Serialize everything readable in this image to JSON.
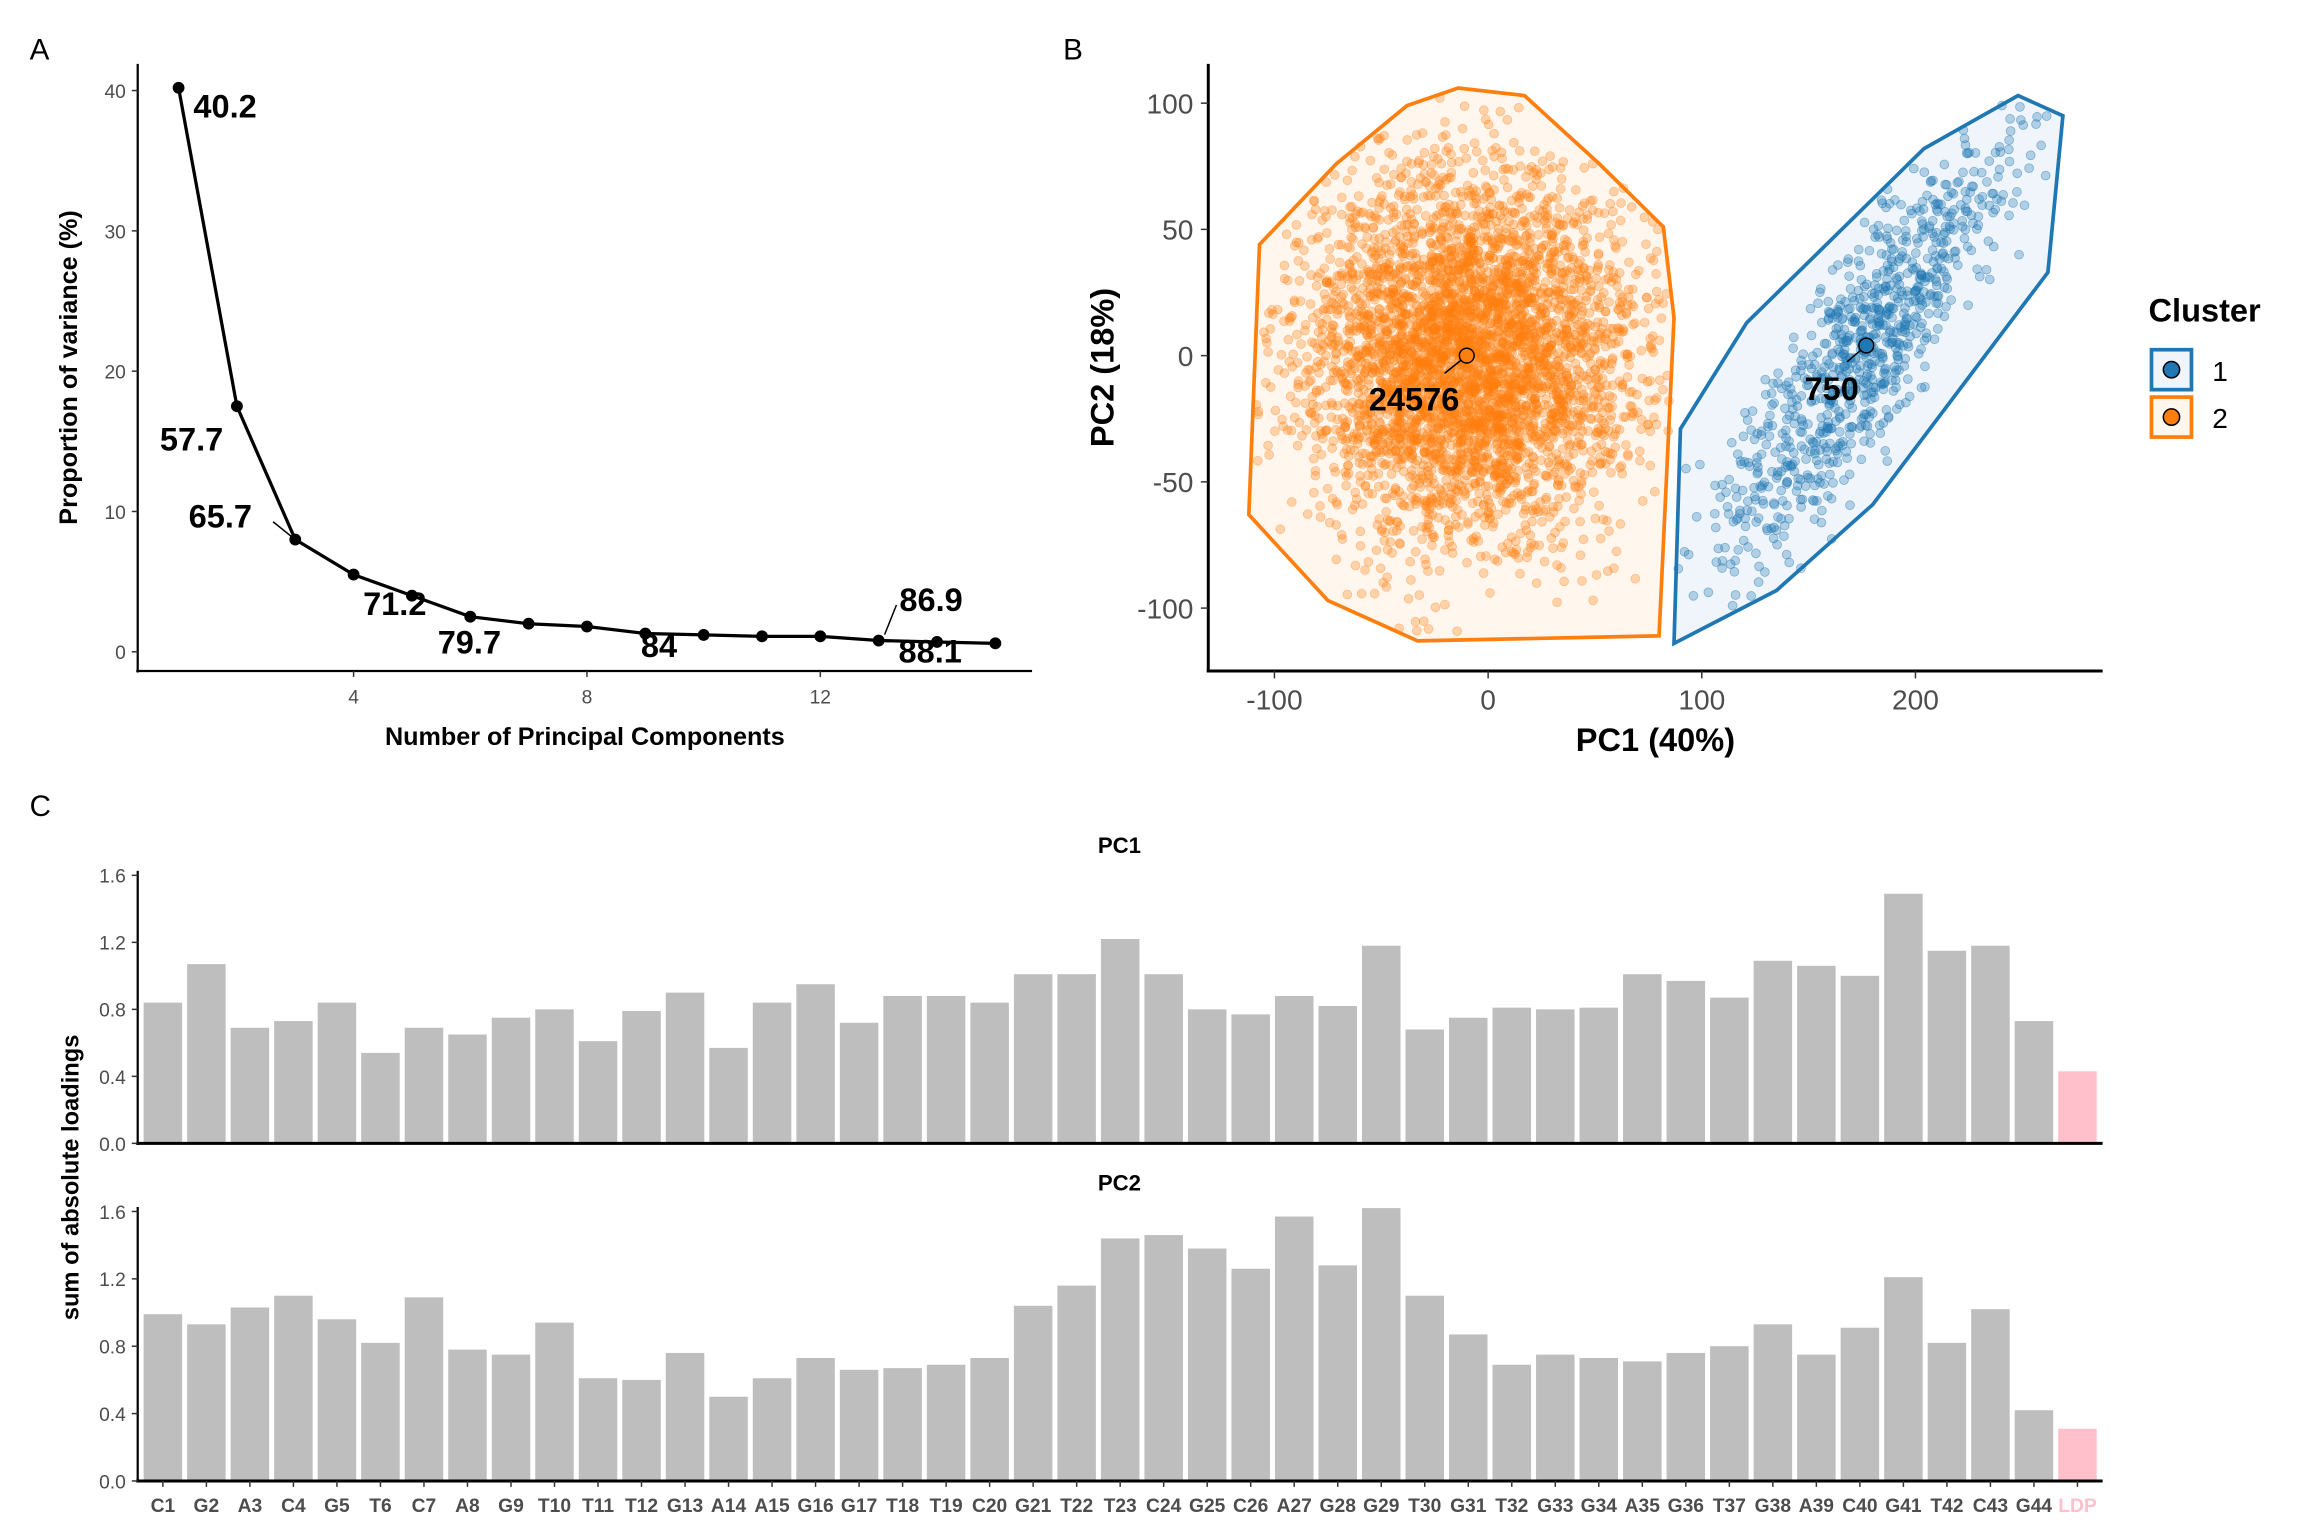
{
  "chart_data": [
    {
      "panel": "A",
      "type": "line",
      "xlabel": "Number of Principal Components",
      "ylabel": "Proportion of variance (%)",
      "x": [
        1,
        2,
        3,
        4,
        5,
        6,
        7,
        8,
        9,
        10,
        11,
        12,
        13,
        14,
        15
      ],
      "y": [
        40.2,
        17.5,
        8.0,
        5.5,
        4.0,
        2.5,
        2.0,
        1.8,
        1.3,
        1.2,
        1.1,
        1.1,
        0.8,
        0.7,
        0.6
      ],
      "xticks": [
        4,
        8,
        12
      ],
      "yticks": [
        0,
        10,
        20,
        30,
        40
      ],
      "annotations": [
        {
          "pc": 1,
          "text": "40.2"
        },
        {
          "pc": 2,
          "text": "57.7"
        },
        {
          "pc": 3,
          "text": "65.7"
        },
        {
          "pc": 5,
          "text": "71.2"
        },
        {
          "pc": 6,
          "text": "79.7"
        },
        {
          "pc": 9,
          "text": "84"
        },
        {
          "pc": 13,
          "text": "86.9"
        },
        {
          "pc": 14,
          "text": "88.1"
        }
      ],
      "grid": false
    },
    {
      "panel": "B",
      "type": "scatter",
      "xlabel": "PC1 (40%)",
      "ylabel": "PC2 (18%)",
      "xticks": [
        -100,
        0,
        100,
        200
      ],
      "yticks": [
        -100,
        -50,
        0,
        50,
        100
      ],
      "legend": {
        "title": "Cluster",
        "placement": "right"
      },
      "series": [
        {
          "name": "1",
          "color": "#1f77b4",
          "count_label": "750",
          "centroid": [
            177,
            4
          ],
          "hull": [
            [
              90,
              -29
            ],
            [
              121,
              13
            ],
            [
              204,
              82
            ],
            [
              248,
              103
            ],
            [
              269,
              95
            ],
            [
              262,
              33
            ],
            [
              180,
              -59
            ],
            [
              135,
              -93
            ],
            [
              87,
              -114
            ]
          ]
        },
        {
          "name": "2",
          "color": "#ff7f0e",
          "count_label": "24576",
          "centroid": [
            -10,
            0
          ],
          "hull": [
            [
              -107,
              44
            ],
            [
              -71,
              76
            ],
            [
              -38,
              99
            ],
            [
              -14,
              106
            ],
            [
              17,
              103
            ],
            [
              52,
              76
            ],
            [
              82,
              51
            ],
            [
              87,
              15
            ],
            [
              80,
              -111
            ],
            [
              -33,
              -113
            ],
            [
              -75,
              -97
            ],
            [
              -112,
              -63
            ]
          ]
        }
      ],
      "grid": false
    },
    {
      "panel": "C",
      "type": "bar",
      "ylabel": "sum of absolute loadings",
      "yticks": [
        "0.0",
        "0.4",
        "0.8",
        "1.2",
        "1.6"
      ],
      "ylim": [
        0,
        1.6
      ],
      "bar_color": "#bebebe",
      "highlight_color": "#ffc0cb",
      "highlight_category": "LDP",
      "categories": [
        "C1",
        "G2",
        "A3",
        "C4",
        "G5",
        "T6",
        "C7",
        "A8",
        "G9",
        "T10",
        "T11",
        "T12",
        "G13",
        "A14",
        "A15",
        "G16",
        "G17",
        "T18",
        "T19",
        "C20",
        "G21",
        "T22",
        "T23",
        "C24",
        "G25",
        "C26",
        "A27",
        "G28",
        "G29",
        "T30",
        "G31",
        "T32",
        "G33",
        "G34",
        "A35",
        "G36",
        "T37",
        "G38",
        "A39",
        "C40",
        "G41",
        "T42",
        "C43",
        "G44",
        "LDP"
      ],
      "series": [
        {
          "name": "PC1",
          "values": [
            0.84,
            1.07,
            0.69,
            0.73,
            0.84,
            0.54,
            0.69,
            0.65,
            0.75,
            0.8,
            0.61,
            0.79,
            0.9,
            0.57,
            0.84,
            0.95,
            0.72,
            0.88,
            0.88,
            0.84,
            1.01,
            1.01,
            1.22,
            1.01,
            0.8,
            0.77,
            0.88,
            0.82,
            1.18,
            0.68,
            0.75,
            0.81,
            0.8,
            0.81,
            1.01,
            0.97,
            0.87,
            1.09,
            1.06,
            1.0,
            1.49,
            1.15,
            1.18,
            0.73,
            0.43
          ]
        },
        {
          "name": "PC2",
          "values": [
            0.99,
            0.93,
            1.03,
            1.1,
            0.96,
            0.82,
            1.09,
            0.78,
            0.75,
            0.94,
            0.61,
            0.6,
            0.76,
            0.5,
            0.61,
            0.73,
            0.66,
            0.67,
            0.69,
            0.73,
            1.04,
            1.16,
            1.44,
            1.46,
            1.38,
            1.26,
            1.57,
            1.28,
            1.62,
            1.1,
            0.87,
            0.69,
            0.75,
            0.73,
            0.71,
            0.76,
            0.8,
            0.93,
            0.75,
            0.91,
            1.21,
            0.82,
            1.02,
            0.42,
            0.31
          ]
        }
      ]
    }
  ],
  "panel_labels": [
    "A",
    "B",
    "C"
  ]
}
